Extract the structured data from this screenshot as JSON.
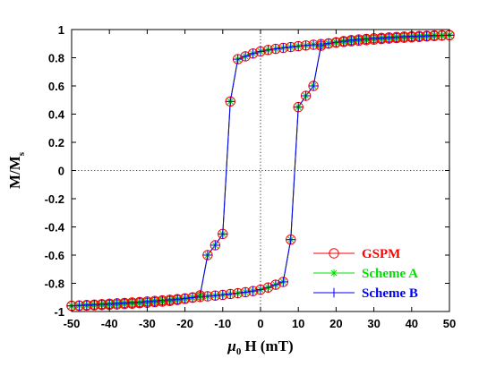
{
  "chart_data": {
    "type": "line",
    "title": "",
    "xlabel": {
      "greek": "μ",
      "sub": "0",
      "main": "H (mT)"
    },
    "ylabel": {
      "main": "M/M",
      "sub": "s"
    },
    "xlim": [
      -50,
      50
    ],
    "ylim": [
      -1,
      1
    ],
    "xticks": [
      -50,
      -40,
      -30,
      -20,
      -10,
      0,
      10,
      20,
      30,
      40,
      50
    ],
    "yticks": [
      -1,
      -0.8,
      -0.6,
      -0.4,
      -0.2,
      0,
      0.2,
      0.4,
      0.6,
      0.8,
      1
    ],
    "xtick_labels": [
      "-50",
      "-40",
      "-30",
      "-20",
      "-10",
      "0",
      "10",
      "20",
      "30",
      "40",
      "50"
    ],
    "ytick_labels": [
      "-1",
      "-0.8",
      "-0.6",
      "-0.4",
      "-0.2",
      "0",
      "0.2",
      "0.4",
      "0.6",
      "0.8",
      "1"
    ],
    "reference_lines": {
      "x": 0,
      "y": 0,
      "style": "dotted"
    },
    "grid": false,
    "legend": {
      "position": "bottom-right"
    },
    "branches": [
      {
        "direction": "descending",
        "x": [
          50,
          48,
          46,
          44,
          42,
          40,
          38,
          36,
          34,
          32,
          30,
          28,
          26,
          24,
          22,
          20,
          18,
          16,
          14,
          12,
          10,
          8,
          6,
          4,
          2,
          0,
          -2,
          -4,
          -6,
          -8,
          -10,
          -12,
          -14,
          -16,
          -18,
          -20,
          -22,
          -24,
          -26,
          -28,
          -30,
          -32,
          -34,
          -36,
          -38,
          -40,
          -42,
          -44,
          -46,
          -48,
          -50
        ],
        "y": [
          0.96,
          0.957,
          0.954,
          0.951,
          0.948,
          0.945,
          0.942,
          0.939,
          0.936,
          0.933,
          0.929,
          0.925,
          0.921,
          0.917,
          0.912,
          0.907,
          0.902,
          0.897,
          0.892,
          0.887,
          0.882,
          0.876,
          0.87,
          0.863,
          0.855,
          0.845,
          0.83,
          0.81,
          0.79,
          0.49,
          -0.45,
          -0.53,
          -0.6,
          -0.885,
          -0.9,
          -0.91,
          -0.918,
          -0.925,
          -0.93,
          -0.934,
          -0.938,
          -0.941,
          -0.944,
          -0.947,
          -0.95,
          -0.952,
          -0.954,
          -0.956,
          -0.958,
          -0.959,
          -0.96
        ]
      },
      {
        "direction": "ascending",
        "x": [
          -50,
          -48,
          -46,
          -44,
          -42,
          -40,
          -38,
          -36,
          -34,
          -32,
          -30,
          -28,
          -26,
          -24,
          -22,
          -20,
          -18,
          -16,
          -14,
          -12,
          -10,
          -8,
          -6,
          -4,
          -2,
          0,
          2,
          4,
          6,
          8,
          10,
          12,
          14,
          16,
          18,
          20,
          22,
          24,
          26,
          28,
          30,
          32,
          34,
          36,
          38,
          40,
          42,
          44,
          46,
          48,
          50
        ],
        "y": [
          -0.96,
          -0.957,
          -0.954,
          -0.951,
          -0.948,
          -0.945,
          -0.942,
          -0.939,
          -0.936,
          -0.933,
          -0.929,
          -0.925,
          -0.921,
          -0.917,
          -0.912,
          -0.907,
          -0.902,
          -0.897,
          -0.892,
          -0.887,
          -0.882,
          -0.876,
          -0.87,
          -0.863,
          -0.855,
          -0.845,
          -0.83,
          -0.81,
          -0.79,
          -0.49,
          0.45,
          0.53,
          0.6,
          0.885,
          0.9,
          0.91,
          0.918,
          0.925,
          0.93,
          0.934,
          0.938,
          0.941,
          0.944,
          0.947,
          0.95,
          0.952,
          0.954,
          0.956,
          0.958,
          0.959,
          0.96
        ]
      }
    ],
    "series": [
      {
        "name": "GSPM",
        "color": "#ff0000",
        "marker": "circle"
      },
      {
        "name": "Scheme A",
        "color": "#00e000",
        "marker": "asterisk"
      },
      {
        "name": "Scheme B",
        "color": "#0000ff",
        "marker": "plus"
      }
    ]
  }
}
